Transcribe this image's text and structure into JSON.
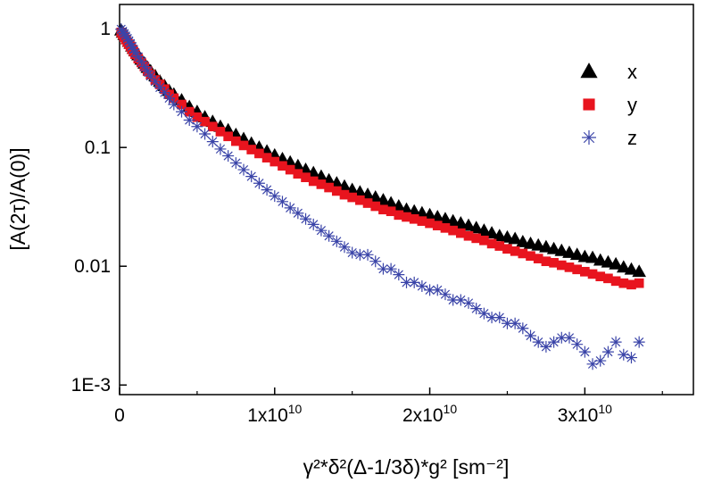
{
  "chart_data": {
    "type": "scatter",
    "xlabel": "γ²*δ²(Δ-1/3δ)*g² [sm⁻²]",
    "ylabel": "[A(2τ)/A(0)]",
    "xlim": [
      0,
      37000000000.0
    ],
    "ylim": [
      0.00083,
      1.6
    ],
    "yscale": "log",
    "grid": false,
    "legend_position": "top-right",
    "x_ticks": [
      {
        "value": 0,
        "label": "0"
      },
      {
        "value": 10000000000.0,
        "label_base": "1x10",
        "label_exp": "10"
      },
      {
        "value": 20000000000.0,
        "label_base": "2x10",
        "label_exp": "10"
      },
      {
        "value": 30000000000.0,
        "label_base": "3x10",
        "label_exp": "10"
      }
    ],
    "y_ticks": [
      {
        "value": 1,
        "label": "1"
      },
      {
        "value": 0.1,
        "label": "0.1"
      },
      {
        "value": 0.01,
        "label": "0.01"
      },
      {
        "value": 0.001,
        "label": "1E-3"
      }
    ],
    "series": [
      {
        "name": "x",
        "marker": "triangle",
        "color": "#000000",
        "x": [
          100000000.0,
          200000000.0,
          300000000.0,
          400000000.0,
          500000000.0,
          600000000.0,
          700000000.0,
          800000000.0,
          900000000.0,
          1000000000.0,
          1200000000.0,
          1400000000.0,
          1600000000.0,
          1800000000.0,
          2000000000.0,
          2300000000.0,
          2600000000.0,
          2900000000.0,
          3200000000.0,
          3500000000.0,
          4000000000.0,
          4500000000.0,
          5000000000.0,
          5500000000.0,
          6000000000.0,
          6500000000.0,
          7000000000.0,
          7500000000.0,
          8000000000.0,
          8500000000.0,
          9000000000.0,
          9500000000.0,
          10000000000.0,
          10500000000.0,
          11000000000.0,
          11500000000.0,
          12000000000.0,
          12500000000.0,
          13000000000.0,
          13500000000.0,
          14000000000.0,
          14500000000.0,
          15000000000.0,
          15500000000.0,
          16000000000.0,
          16500000000.0,
          17000000000.0,
          17500000000.0,
          18000000000.0,
          18500000000.0,
          19000000000.0,
          19500000000.0,
          20000000000.0,
          20500000000.0,
          21000000000.0,
          21500000000.0,
          22000000000.0,
          22500000000.0,
          23000000000.0,
          23500000000.0,
          24000000000.0,
          24500000000.0,
          25000000000.0,
          25500000000.0,
          26000000000.0,
          26500000000.0,
          27000000000.0,
          27500000000.0,
          28000000000.0,
          28500000000.0,
          29000000000.0,
          29500000000.0,
          30000000000.0,
          30500000000.0,
          31000000000.0,
          31500000000.0,
          32000000000.0,
          32500000000.0,
          33000000000.0,
          33500000000.0
        ],
        "y": [
          0.97,
          0.93,
          0.89,
          0.86,
          0.82,
          0.78,
          0.75,
          0.71,
          0.68,
          0.65,
          0.6,
          0.55,
          0.51,
          0.47,
          0.44,
          0.4,
          0.36,
          0.33,
          0.3,
          0.28,
          0.25,
          0.22,
          0.2,
          0.18,
          0.165,
          0.15,
          0.14,
          0.128,
          0.118,
          0.108,
          0.1,
          0.093,
          0.086,
          0.08,
          0.075,
          0.07,
          0.065,
          0.061,
          0.057,
          0.053,
          0.05,
          0.047,
          0.044,
          0.042,
          0.04,
          0.038,
          0.036,
          0.034,
          0.032,
          0.03,
          0.029,
          0.028,
          0.027,
          0.026,
          0.025,
          0.024,
          0.023,
          0.022,
          0.021,
          0.02,
          0.019,
          0.018,
          0.0175,
          0.017,
          0.016,
          0.0155,
          0.015,
          0.0145,
          0.014,
          0.0135,
          0.013,
          0.0125,
          0.012,
          0.0118,
          0.0112,
          0.0108,
          0.0104,
          0.0098,
          0.0094,
          0.009
        ]
      },
      {
        "name": "y",
        "marker": "square",
        "color": "#e8141e",
        "x": [
          100000000.0,
          200000000.0,
          300000000.0,
          400000000.0,
          500000000.0,
          600000000.0,
          700000000.0,
          800000000.0,
          900000000.0,
          1000000000.0,
          1200000000.0,
          1400000000.0,
          1600000000.0,
          1800000000.0,
          2000000000.0,
          2300000000.0,
          2600000000.0,
          2900000000.0,
          3200000000.0,
          3500000000.0,
          4000000000.0,
          4500000000.0,
          5000000000.0,
          5500000000.0,
          6000000000.0,
          6500000000.0,
          7000000000.0,
          7500000000.0,
          8000000000.0,
          8500000000.0,
          9000000000.0,
          9500000000.0,
          10000000000.0,
          10500000000.0,
          11000000000.0,
          11500000000.0,
          12000000000.0,
          12500000000.0,
          13000000000.0,
          13500000000.0,
          14000000000.0,
          14500000000.0,
          15000000000.0,
          15500000000.0,
          16000000000.0,
          16500000000.0,
          17000000000.0,
          17500000000.0,
          18000000000.0,
          18500000000.0,
          19000000000.0,
          19500000000.0,
          20000000000.0,
          20500000000.0,
          21000000000.0,
          21500000000.0,
          22000000000.0,
          22500000000.0,
          23000000000.0,
          23500000000.0,
          24000000000.0,
          24500000000.0,
          25000000000.0,
          25500000000.0,
          26000000000.0,
          26500000000.0,
          27000000000.0,
          27500000000.0,
          28000000000.0,
          28500000000.0,
          29000000000.0,
          29500000000.0,
          30000000000.0,
          30500000000.0,
          31000000000.0,
          31500000000.0,
          32000000000.0,
          32500000000.0,
          33000000000.0,
          33500000000.0
        ],
        "y": [
          0.93,
          0.89,
          0.85,
          0.81,
          0.77,
          0.74,
          0.71,
          0.67,
          0.64,
          0.61,
          0.56,
          0.52,
          0.48,
          0.44,
          0.41,
          0.37,
          0.34,
          0.31,
          0.28,
          0.26,
          0.23,
          0.2,
          0.18,
          0.165,
          0.15,
          0.136,
          0.124,
          0.113,
          0.104,
          0.096,
          0.089,
          0.082,
          0.076,
          0.07,
          0.065,
          0.06,
          0.056,
          0.052,
          0.049,
          0.046,
          0.043,
          0.04,
          0.038,
          0.036,
          0.034,
          0.032,
          0.03,
          0.029,
          0.027,
          0.026,
          0.025,
          0.024,
          0.023,
          0.022,
          0.021,
          0.02,
          0.019,
          0.018,
          0.0172,
          0.0165,
          0.0155,
          0.0148,
          0.014,
          0.0134,
          0.0128,
          0.0122,
          0.0116,
          0.011,
          0.0107,
          0.0102,
          0.0098,
          0.0094,
          0.009,
          0.0086,
          0.0082,
          0.0079,
          0.0075,
          0.0072,
          0.007,
          0.0072
        ]
      },
      {
        "name": "z",
        "marker": "asterisk",
        "color": "#3a44a8",
        "x": [
          100000000.0,
          200000000.0,
          300000000.0,
          400000000.0,
          500000000.0,
          600000000.0,
          700000000.0,
          800000000.0,
          900000000.0,
          1000000000.0,
          1200000000.0,
          1400000000.0,
          1600000000.0,
          1800000000.0,
          2000000000.0,
          2300000000.0,
          2600000000.0,
          2900000000.0,
          3200000000.0,
          3500000000.0,
          4000000000.0,
          4500000000.0,
          5000000000.0,
          5500000000.0,
          6000000000.0,
          6500000000.0,
          7000000000.0,
          7500000000.0,
          8000000000.0,
          8500000000.0,
          9000000000.0,
          9500000000.0,
          10000000000.0,
          10500000000.0,
          11000000000.0,
          11500000000.0,
          12000000000.0,
          12500000000.0,
          13000000000.0,
          13500000000.0,
          14000000000.0,
          14500000000.0,
          15000000000.0,
          15500000000.0,
          16000000000.0,
          16500000000.0,
          17000000000.0,
          17500000000.0,
          18000000000.0,
          18500000000.0,
          19000000000.0,
          19500000000.0,
          20000000000.0,
          20500000000.0,
          21000000000.0,
          21500000000.0,
          22000000000.0,
          22500000000.0,
          23000000000.0,
          23500000000.0,
          24000000000.0,
          24500000000.0,
          25000000000.0,
          25500000000.0,
          26000000000.0,
          26500000000.0,
          27000000000.0,
          27500000000.0,
          28000000000.0,
          28500000000.0,
          29000000000.0,
          29500000000.0,
          30000000000.0,
          30500000000.0,
          31000000000.0,
          31500000000.0,
          32000000000.0,
          32500000000.0,
          33000000000.0,
          33500000000.0
        ],
        "y": [
          0.99,
          0.95,
          0.91,
          0.87,
          0.83,
          0.79,
          0.75,
          0.71,
          0.67,
          0.63,
          0.58,
          0.53,
          0.48,
          0.44,
          0.4,
          0.36,
          0.32,
          0.29,
          0.26,
          0.23,
          0.2,
          0.17,
          0.15,
          0.13,
          0.112,
          0.097,
          0.085,
          0.074,
          0.065,
          0.057,
          0.05,
          0.044,
          0.039,
          0.035,
          0.031,
          0.028,
          0.025,
          0.0225,
          0.02,
          0.018,
          0.0162,
          0.0145,
          0.013,
          0.0125,
          0.0125,
          0.011,
          0.0095,
          0.0095,
          0.0085,
          0.0073,
          0.0073,
          0.0068,
          0.0063,
          0.0063,
          0.0058,
          0.0052,
          0.0052,
          0.0049,
          0.0044,
          0.004,
          0.0037,
          0.0037,
          0.0033,
          0.0033,
          0.003,
          0.0026,
          0.0023,
          0.0021,
          0.0023,
          0.0025,
          0.0025,
          0.0022,
          0.0019,
          0.0015,
          0.0016,
          0.0019,
          0.0023,
          0.0018,
          0.0017,
          0.0023
        ]
      }
    ]
  }
}
